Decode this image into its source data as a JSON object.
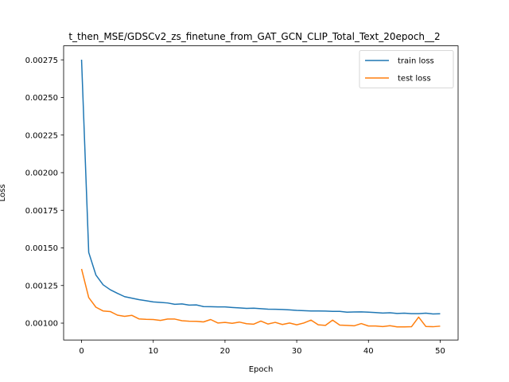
{
  "chart_data": {
    "type": "line",
    "title": "t_then_MSE/GDSCv2_zs_finetune_from_GAT_GCN_CLIP_Total_Text_20epoch__2",
    "xlabel": "Epoch",
    "ylabel": "Loss",
    "xlim": [
      -2.5,
      52.5
    ],
    "ylim": [
      0.000888,
      0.002843
    ],
    "x_ticks": [
      0,
      10,
      20,
      30,
      40,
      50
    ],
    "x_tick_labels": [
      "0",
      "10",
      "20",
      "30",
      "40",
      "50"
    ],
    "y_ticks": [
      0.001,
      0.00125,
      0.0015,
      0.00175,
      0.002,
      0.00225,
      0.0025,
      0.00275
    ],
    "y_tick_labels": [
      "0.00100",
      "0.00125",
      "0.00150",
      "0.00175",
      "0.00200",
      "0.00225",
      "0.00250",
      "0.00275"
    ],
    "grid": false,
    "legend_position": "upper right",
    "x": [
      0,
      1,
      2,
      3,
      4,
      5,
      6,
      7,
      8,
      9,
      10,
      11,
      12,
      13,
      14,
      15,
      16,
      17,
      18,
      19,
      20,
      21,
      22,
      23,
      24,
      25,
      26,
      27,
      28,
      29,
      30,
      31,
      32,
      33,
      34,
      35,
      36,
      37,
      38,
      39,
      40,
      41,
      42,
      43,
      44,
      45,
      46,
      47,
      48,
      49,
      50
    ],
    "series": [
      {
        "name": "train loss",
        "color": "#1f77b4",
        "values": [
          0.002751,
          0.00147,
          0.00132,
          0.001255,
          0.001222,
          0.001198,
          0.001176,
          0.001166,
          0.001156,
          0.001149,
          0.001141,
          0.001138,
          0.001134,
          0.001125,
          0.001128,
          0.00112,
          0.001121,
          0.00111,
          0.001109,
          0.001108,
          0.001108,
          0.001104,
          0.001101,
          0.001098,
          0.001099,
          0.001096,
          0.001093,
          0.001092,
          0.001091,
          0.001088,
          0.001085,
          0.001083,
          0.001081,
          0.001081,
          0.00108,
          0.001078,
          0.001078,
          0.001073,
          0.001074,
          0.001075,
          0.001073,
          0.00107,
          0.001067,
          0.001069,
          0.001064,
          0.001066,
          0.001063,
          0.001063,
          0.001066,
          0.001061,
          0.001062
        ]
      },
      {
        "name": "test loss",
        "color": "#ff7f0e",
        "values": [
          0.00136,
          0.00117,
          0.001106,
          0.001081,
          0.001077,
          0.001053,
          0.001045,
          0.001052,
          0.001028,
          0.001025,
          0.001024,
          0.001018,
          0.001027,
          0.001027,
          0.001016,
          0.001013,
          0.001012,
          0.001008,
          0.001024,
          0.001001,
          0.001005,
          0.000999,
          0.001007,
          0.000996,
          0.000993,
          0.001014,
          0.000994,
          0.001005,
          0.000991,
          0.001001,
          0.000989,
          0.001001,
          0.00102,
          0.000989,
          0.000985,
          0.00102,
          0.000987,
          0.000985,
          0.000982,
          0.000997,
          0.000981,
          0.000981,
          0.000977,
          0.000983,
          0.000975,
          0.000975,
          0.000976,
          0.00104,
          0.000978,
          0.000976,
          0.00098
        ]
      }
    ]
  }
}
